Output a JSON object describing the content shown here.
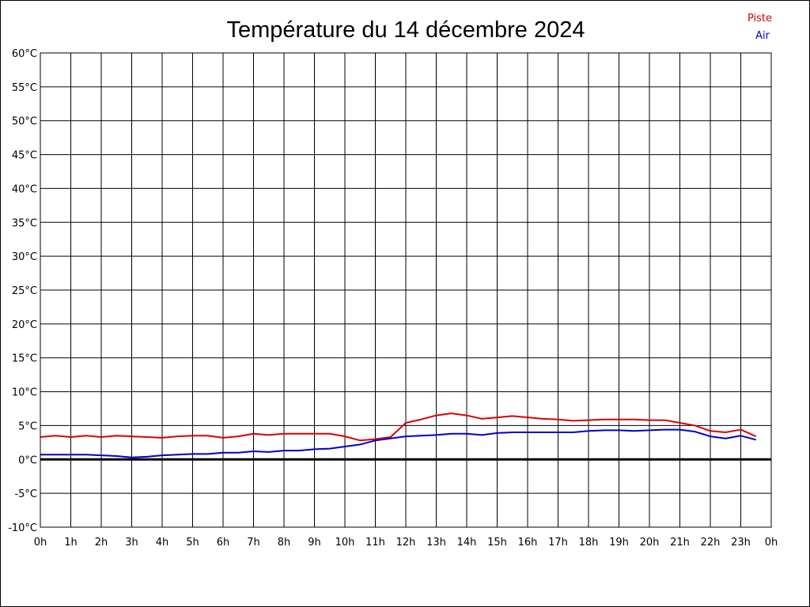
{
  "chart_data": {
    "type": "line",
    "title": "Température du 14 décembre 2024",
    "xlabel": "",
    "ylabel": "",
    "x_ticks": [
      "0h",
      "1h",
      "2h",
      "3h",
      "4h",
      "5h",
      "6h",
      "7h",
      "8h",
      "9h",
      "10h",
      "11h",
      "12h",
      "13h",
      "14h",
      "15h",
      "16h",
      "17h",
      "18h",
      "19h",
      "20h",
      "21h",
      "22h",
      "23h",
      "0h"
    ],
    "y_ticks": [
      "60°C",
      "55°C",
      "50°C",
      "45°C",
      "40°C",
      "35°C",
      "30°C",
      "25°C",
      "20°C",
      "15°C",
      "10°C",
      "5°C",
      "0°C",
      "-5°C",
      "-10°C"
    ],
    "xlim": [
      0,
      24
    ],
    "ylim": [
      -10,
      60
    ],
    "grid": true,
    "zero_line": true,
    "legend_position": "top-right",
    "series": [
      {
        "name": "Piste",
        "color": "#dd0000",
        "x": [
          0,
          0.5,
          1,
          1.5,
          2,
          2.5,
          3,
          3.5,
          4,
          4.5,
          5,
          5.5,
          6,
          6.5,
          7,
          7.5,
          8,
          8.5,
          9,
          9.5,
          10,
          10.5,
          11,
          11.5,
          12,
          12.5,
          13,
          13.5,
          14,
          14.5,
          15,
          15.5,
          16,
          16.5,
          17,
          17.5,
          18,
          18.5,
          19,
          19.5,
          20,
          20.5,
          21,
          21.5,
          22,
          22.5,
          23,
          23.5
        ],
        "values": [
          3.3,
          3.5,
          3.3,
          3.5,
          3.3,
          3.5,
          3.4,
          3.3,
          3.2,
          3.4,
          3.5,
          3.5,
          3.2,
          3.4,
          3.8,
          3.6,
          3.8,
          3.8,
          3.8,
          3.8,
          3.4,
          2.8,
          3.0,
          3.3,
          5.4,
          5.9,
          6.5,
          6.8,
          6.5,
          6.0,
          6.2,
          6.4,
          6.2,
          6.0,
          5.9,
          5.7,
          5.8,
          5.9,
          5.9,
          5.9,
          5.8,
          5.8,
          5.4,
          5.0,
          4.2,
          4.0,
          4.4,
          3.4
        ]
      },
      {
        "name": "Air",
        "color": "#0000cc",
        "x": [
          0,
          0.5,
          1,
          1.5,
          2,
          2.5,
          3,
          3.5,
          4,
          4.5,
          5,
          5.5,
          6,
          6.5,
          7,
          7.5,
          8,
          8.5,
          9,
          9.5,
          10,
          10.5,
          11,
          11.5,
          12,
          12.5,
          13,
          13.5,
          14,
          14.5,
          15,
          15.5,
          16,
          16.5,
          17,
          17.5,
          18,
          18.5,
          19,
          19.5,
          20,
          20.5,
          21,
          21.5,
          22,
          22.5,
          23,
          23.5
        ],
        "values": [
          0.7,
          0.7,
          0.7,
          0.7,
          0.6,
          0.5,
          0.3,
          0.4,
          0.6,
          0.7,
          0.8,
          0.8,
          1.0,
          1.0,
          1.2,
          1.1,
          1.3,
          1.3,
          1.5,
          1.6,
          1.9,
          2.2,
          2.8,
          3.1,
          3.4,
          3.5,
          3.6,
          3.8,
          3.8,
          3.6,
          3.9,
          4.0,
          4.0,
          4.0,
          4.0,
          4.0,
          4.2,
          4.3,
          4.3,
          4.2,
          4.3,
          4.4,
          4.4,
          4.1,
          3.4,
          3.1,
          3.5,
          2.9
        ]
      }
    ]
  }
}
